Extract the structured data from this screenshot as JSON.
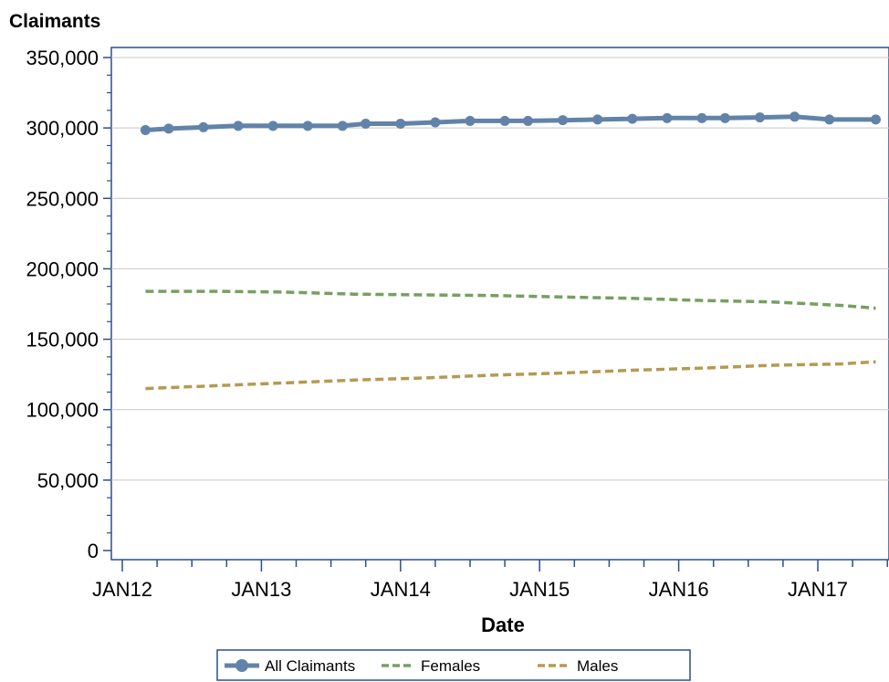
{
  "chart_data": {
    "type": "line",
    "title": "Claimants",
    "xlabel": "Date",
    "ylabel": "",
    "ylim": [
      0,
      350000
    ],
    "y_ticks": [
      0,
      50000,
      100000,
      150000,
      200000,
      250000,
      300000,
      350000
    ],
    "y_tick_labels": [
      "0",
      "50,000",
      "100,000",
      "150,000",
      "200,000",
      "250,000",
      "300,000",
      "350,000"
    ],
    "x_range": [
      "2012-01",
      "2017-07"
    ],
    "x_tick_labels": [
      "JAN12",
      "JAN13",
      "JAN14",
      "JAN15",
      "JAN16",
      "JAN17"
    ],
    "grid": "horizontal",
    "legend_position": "bottom",
    "series": [
      {
        "name": "All Claimants",
        "color": "#6283a9",
        "style": "solid-markers",
        "x": [
          "2012-03",
          "2012-05",
          "2012-08",
          "2012-11",
          "2013-02",
          "2013-05",
          "2013-08",
          "2013-10",
          "2014-01",
          "2014-04",
          "2014-07",
          "2014-10",
          "2014-12",
          "2015-03",
          "2015-06",
          "2015-09",
          "2015-12",
          "2016-03",
          "2016-05",
          "2016-08",
          "2016-11",
          "2017-02",
          "2017-06"
        ],
        "y": [
          298500,
          299500,
          300500,
          301500,
          301500,
          301500,
          301500,
          303000,
          303000,
          304000,
          305000,
          305000,
          305000,
          305500,
          306000,
          306500,
          307000,
          307000,
          307000,
          307500,
          308000,
          306000,
          306000
        ]
      },
      {
        "name": "Females",
        "color": "#76a060",
        "style": "dashed",
        "x": [
          "2012-03",
          "2012-09",
          "2013-03",
          "2013-09",
          "2014-03",
          "2014-09",
          "2015-03",
          "2015-09",
          "2016-03",
          "2016-09",
          "2017-03",
          "2017-06"
        ],
        "y": [
          184000,
          184000,
          183500,
          182000,
          181500,
          181000,
          180000,
          179000,
          177500,
          176500,
          174000,
          172000
        ]
      },
      {
        "name": "Males",
        "color": "#b49a52",
        "style": "dashed",
        "x": [
          "2012-03",
          "2012-09",
          "2013-03",
          "2013-09",
          "2014-03",
          "2014-09",
          "2015-03",
          "2015-09",
          "2016-03",
          "2016-09",
          "2017-03",
          "2017-06"
        ],
        "y": [
          115000,
          117000,
          119000,
          121000,
          122500,
          124500,
          126000,
          128000,
          129500,
          131500,
          132500,
          134000
        ]
      }
    ]
  }
}
